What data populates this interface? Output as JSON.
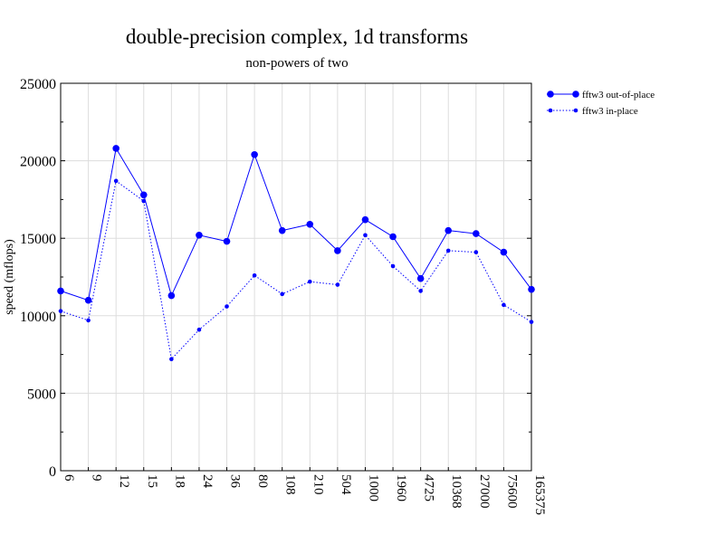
{
  "chart_data": {
    "type": "line",
    "title": "double-precision complex, 1d transforms",
    "subtitle": "non-powers of two",
    "xlabel": "",
    "ylabel": "speed (mflops)",
    "ylim": [
      0,
      25000
    ],
    "yticks": [
      0,
      5000,
      10000,
      15000,
      20000,
      25000
    ],
    "grid": true,
    "legend_position": "outside-right",
    "categories": [
      "6",
      "9",
      "12",
      "15",
      "18",
      "24",
      "36",
      "80",
      "108",
      "210",
      "504",
      "1000",
      "1960",
      "4725",
      "10368",
      "27000",
      "75600",
      "165375"
    ],
    "series": [
      {
        "name": "fftw3 out-of-place",
        "style": "solid",
        "marker": "large-dot",
        "color": "#0000ff",
        "values": [
          11600,
          11000,
          20800,
          17800,
          11300,
          15200,
          14800,
          20400,
          15500,
          15900,
          14200,
          16200,
          15100,
          12400,
          15500,
          15300,
          14100,
          11700
        ]
      },
      {
        "name": "fftw3 in-place",
        "style": "dotted",
        "marker": "small-dot",
        "color": "#0000ff",
        "values": [
          10300,
          9700,
          18700,
          17400,
          7200,
          9100,
          10600,
          12600,
          11400,
          12200,
          12000,
          15200,
          13200,
          11600,
          14200,
          14100,
          10700,
          9600
        ]
      }
    ]
  }
}
